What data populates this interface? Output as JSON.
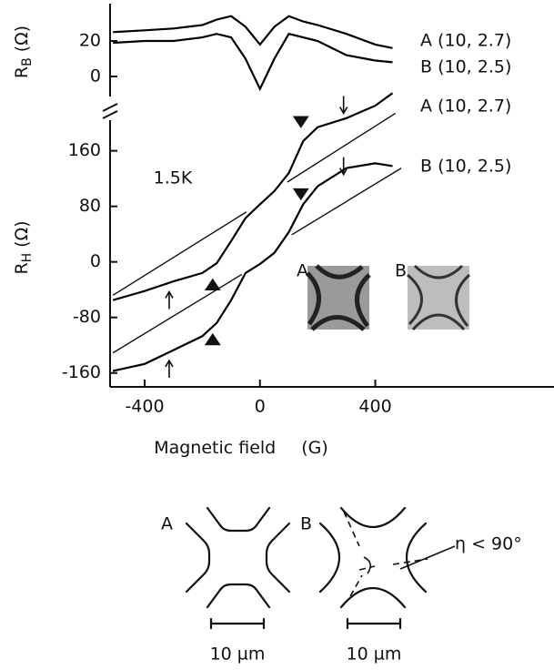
{
  "chart_data": [
    {
      "type": "line",
      "y_label": {
        "symbol": "R",
        "subscript": "B",
        "unit": "(Ω)"
      },
      "x": [
        -510,
        -400,
        -300,
        -200,
        -150,
        -100,
        -50,
        0,
        50,
        100,
        150,
        200,
        300,
        400,
        460
      ],
      "series": [
        {
          "name": "A (10, 2.7)",
          "color": "#000000",
          "values": [
            25,
            26,
            27,
            29,
            32,
            34,
            28,
            18,
            28,
            34,
            31,
            29,
            24,
            18,
            16
          ]
        },
        {
          "name": "B (10, 2.5)",
          "color": "#000000",
          "values": [
            19,
            20,
            20,
            22,
            24,
            22,
            10,
            -7,
            10,
            24,
            22,
            20,
            12,
            9,
            8
          ]
        }
      ],
      "xlim": [
        -520,
        1020
      ],
      "ylim": [
        -10,
        40
      ],
      "yticks": [
        0,
        20
      ]
    },
    {
      "type": "line",
      "y_label": {
        "symbol": "R",
        "subscript": "H",
        "unit": "(Ω)"
      },
      "x_label": "Magnetic field",
      "x_unit": "(G)",
      "annotation": "1.5K",
      "x": [
        -510,
        -400,
        -300,
        -200,
        -150,
        -100,
        -50,
        0,
        50,
        100,
        150,
        200,
        300,
        400,
        460
      ],
      "series": [
        {
          "name": "A (10, 2.7)",
          "color": "#000000",
          "values": [
            -55,
            -42,
            -28,
            -16,
            -2,
            30,
            63,
            83,
            102,
            128,
            174,
            194,
            207,
            225,
            243
          ]
        },
        {
          "name": "B (10, 2.5)",
          "color": "#000000",
          "values": [
            -157,
            -147,
            -127,
            -107,
            -88,
            -55,
            -16,
            -3,
            13,
            43,
            83,
            109,
            135,
            142,
            138
          ]
        }
      ],
      "fits": [
        {
          "x": [
            -510,
            -47
          ],
          "values": [
            -48,
            72
          ]
        },
        {
          "x": [
            95,
            470
          ],
          "values": [
            115,
            214
          ]
        },
        {
          "x": [
            -510,
            -63
          ],
          "values": [
            -131,
            -18
          ]
        },
        {
          "x": [
            110,
            490
          ],
          "values": [
            39,
            135
          ]
        }
      ],
      "markers": [
        {
          "shape": "triangle-down",
          "x": 142,
          "y": 191
        },
        {
          "shape": "triangle-down",
          "x": 142,
          "y": 87
        },
        {
          "shape": "triangle-up",
          "x": -164,
          "y": -22
        },
        {
          "shape": "triangle-up",
          "x": -164,
          "y": -101
        },
        {
          "shape": "arrow-down",
          "x": 290,
          "y": 210
        },
        {
          "shape": "arrow-down",
          "x": 290,
          "y": 122
        },
        {
          "shape": "arrow-up",
          "x": -315,
          "y": -39
        },
        {
          "shape": "arrow-up",
          "x": -315,
          "y": -138
        }
      ],
      "xlim": [
        -520,
        1020
      ],
      "ylim": [
        -180,
        250
      ],
      "xticks": [
        -400,
        0,
        400
      ],
      "yticks": [
        -160,
        -80,
        0,
        80,
        160
      ]
    }
  ],
  "figure": {
    "insets": [
      {
        "label": "A"
      },
      {
        "label": "B"
      }
    ],
    "diagrams": [
      {
        "label": "A",
        "scale": "10 µm"
      },
      {
        "label": "B",
        "scale": "10 µm",
        "angle_label": "η < 90°"
      }
    ]
  }
}
